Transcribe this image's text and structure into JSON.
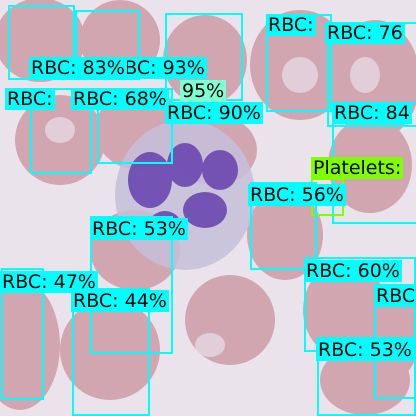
{
  "colors": {
    "rbc": "#00ffff",
    "wbc": "#7fffd4",
    "platelets": "#7fff00"
  },
  "detections": [
    {
      "id": "d1",
      "cls": "rbc",
      "label": "RBC: 83%"
    },
    {
      "id": "d2",
      "cls": "rbc",
      "label": "RBC: 93%"
    },
    {
      "id": "d3",
      "cls": "wbc",
      "label": "95%"
    },
    {
      "id": "d4",
      "cls": "rbc",
      "label": "RBC: 76"
    },
    {
      "id": "d5",
      "cls": "rbc",
      "label": "RBC: "
    },
    {
      "id": "d6",
      "cls": "rbc",
      "label": "RBC: 68%"
    },
    {
      "id": "d7",
      "cls": "rbc",
      "label": "RBC:"
    },
    {
      "id": "d8",
      "cls": "rbc",
      "label": "RBC: 90%"
    },
    {
      "id": "d9",
      "cls": "rbc",
      "label": "RBC: 84"
    },
    {
      "id": "d10",
      "cls": "platelets",
      "label": "Platelets:"
    },
    {
      "id": "d11",
      "cls": "rbc",
      "label": "RBC: 56%"
    },
    {
      "id": "d12",
      "cls": "rbc",
      "label": "RBC: 53%"
    },
    {
      "id": "d13",
      "cls": "rbc",
      "label": "RBC: 47%"
    },
    {
      "id": "d14",
      "cls": "rbc",
      "label": "RBC: 60%"
    },
    {
      "id": "d15",
      "cls": "rbc",
      "label": "RBC"
    },
    {
      "id": "d16",
      "cls": "rbc",
      "label": "RBC: 44%"
    },
    {
      "id": "d17",
      "cls": "rbc",
      "label": "RBC: 53%"
    }
  ]
}
